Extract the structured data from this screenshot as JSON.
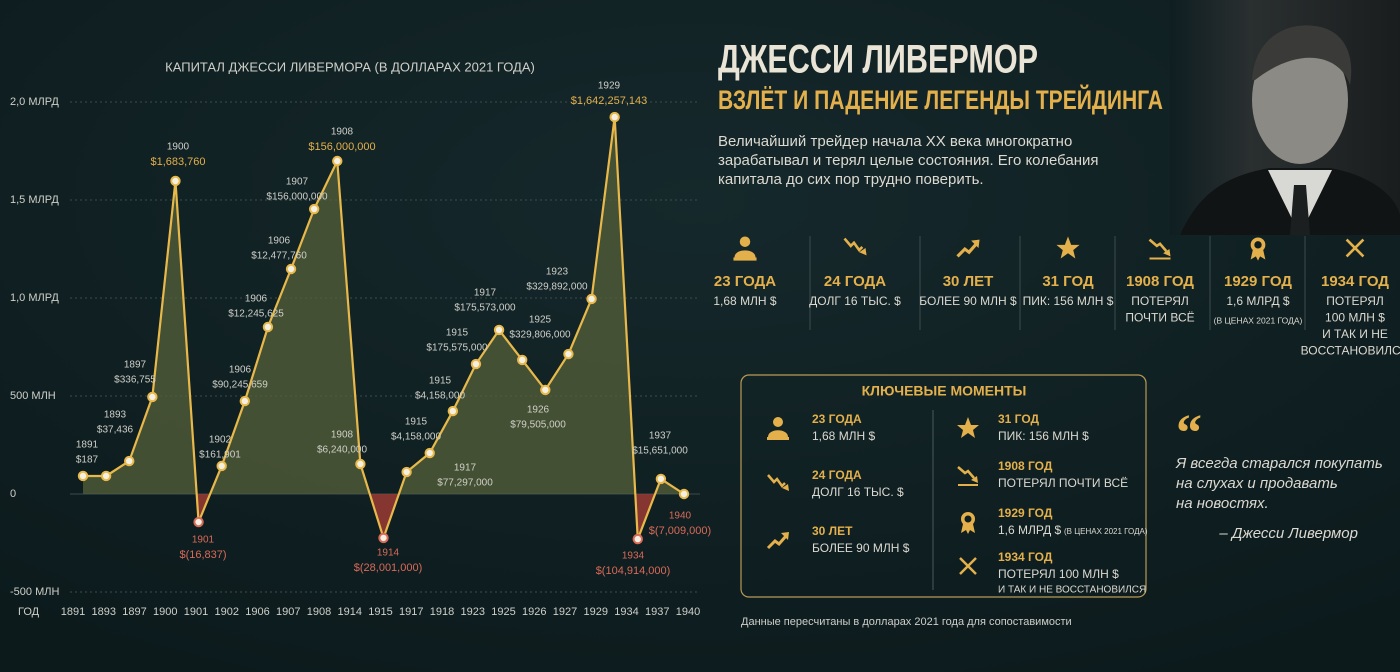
{
  "chart_data": {
    "type": "line",
    "title": "КАПИТАЛ ДЖЕССИ ЛИВЕРМОРА (В ДОЛЛАРАХ 2021 ГОДА)",
    "x_axis_title": "ГОД",
    "xtick_labels": [
      "1891",
      "1893",
      "1897",
      "1900",
      "1901",
      "1902",
      "1906",
      "1907",
      "1908",
      "1914",
      "1915",
      "1917",
      "1918",
      "1923",
      "1925",
      "1926",
      "1927",
      "1929",
      "1934",
      "1937",
      "1940"
    ],
    "values": [
      92,
      92,
      168,
      495,
      1597,
      -143,
      143,
      474,
      852,
      1148,
      1454,
      1699,
      153,
      -224,
      112,
      209,
      423,
      663,
      837,
      684,
      531,
      714,
      995,
      1923,
      -230,
      77,
      0
    ],
    "color": "#e8b94a",
    "positive_fill": "#56603a",
    "negative_fill": "#9a3b32",
    "ylim": [
      -500,
      2000
    ],
    "yticks": [
      {
        "value": -500,
        "label": "-500 МЛН"
      },
      0,
      {
        "value": 500,
        "label": "500 МЛН"
      },
      {
        "value": 1000,
        "label": "1,0 МЛРД"
      },
      {
        "value": 1500,
        "label": "1,5 МЛРД"
      },
      {
        "value": 2000,
        "label": "2,0 МЛРД"
      }
    ],
    "grid": true,
    "annotations": [
      {
        "year": "1891",
        "amount": "$187"
      },
      {
        "year": "1893",
        "amount": "$37,436"
      },
      {
        "year": "1897",
        "amount": "$336,755"
      },
      {
        "year": "1900",
        "amount": "$1,683,760"
      },
      {
        "year": "1901",
        "amount": "$(16,837)"
      },
      {
        "year": "1902",
        "amount": "$161,901"
      },
      {
        "year": "1906",
        "amount": "$90,245,659"
      },
      {
        "year": "1906",
        "amount": "$12,245,625"
      },
      {
        "year": "1906",
        "amount": "$12,477,760"
      },
      {
        "year": "1907",
        "amount": "$156,000,000"
      },
      {
        "year": "1908",
        "amount": "$156,000,000"
      },
      {
        "year": "1908",
        "amount": "$6,240,000"
      },
      {
        "year": "1914",
        "amount": "$(28,001,000)"
      },
      {
        "year": "1915",
        "amount": "$4,158,000"
      },
      {
        "year": "1915",
        "amount": "$4,158,000"
      },
      {
        "year": "1915",
        "amount": "$175,575,000"
      },
      {
        "year": "1917",
        "amount": "$175,573,000"
      },
      {
        "year": "1917",
        "amount": "$77,297,000"
      },
      {
        "year": "1925",
        "amount": "$329,806,000"
      },
      {
        "year": "1926",
        "amount": "$79,505,000"
      },
      {
        "year": "1923",
        "amount": "$329,892,000"
      },
      {
        "year": "1929",
        "amount": "$1,642,257,143"
      },
      {
        "year": "1934",
        "amount": "$(104,914,000)"
      },
      {
        "year": "1937",
        "amount": "$15,651,000"
      },
      {
        "year": "1940",
        "amount": "$(7,009,000)"
      }
    ]
  },
  "header": {
    "title": "ДЖЕССИ ЛИВЕРМОР",
    "subtitle": "ВЗЛЁТ И ПАДЕНИЕ ЛЕГЕНДЫ ТРЕЙДИНГА",
    "description": [
      "Величайший трейдер начала XX века многократно",
      "зарабатывал и терял целые состояния. Его колебания",
      "капитала до сих пор трудно поверить."
    ]
  },
  "stats": [
    {
      "heading": "23 ГОДА",
      "lines": [
        "1,68 МЛН $"
      ]
    },
    {
      "heading": "24 ГОДА",
      "lines": [
        "ДОЛГ 16 ТЫС. $"
      ]
    },
    {
      "heading": "30 ЛЕТ",
      "lines": [
        "БОЛЕЕ 90 МЛН $"
      ]
    },
    {
      "heading": "31 ГОД",
      "lines": [
        "ПИК: 156 МЛН $"
      ]
    },
    {
      "heading": "1908 ГОД",
      "lines": [
        "ПОТЕРЯЛ",
        "ПОЧТИ ВСЁ"
      ]
    },
    {
      "heading": "1929 ГОД",
      "lines": [
        "1,6 МЛРД $",
        "(В ЦЕНАХ 2021 ГОДА)"
      ]
    },
    {
      "heading": "1934 ГОД",
      "lines": [
        "ПОТЕРЯЛ",
        "100 МЛН $",
        "И ТАК И НЕ",
        "ВОССТАНОВИЛСЯ"
      ]
    }
  ],
  "key_moments": {
    "title": "КЛЮЧЕВЫЕ МОМЕНТЫ",
    "items": [
      {
        "heading": "23 ГОДА",
        "lines": [
          "1,68 МЛН $"
        ]
      },
      {
        "heading": "24 ГОДА",
        "lines": [
          "ДОЛГ 16 ТЫС. $"
        ]
      },
      {
        "heading": "30 ЛЕТ",
        "lines": [
          "БОЛЕЕ 90 МЛН $"
        ]
      },
      {
        "heading": "31 ГОД",
        "lines": [
          "ПИК: 156 МЛН $"
        ]
      },
      {
        "heading": "1908 ГОД",
        "lines": [
          "ПОТЕРЯЛ ПОЧТИ ВСЁ"
        ]
      },
      {
        "heading": "1929 ГОД",
        "lines": [
          "1,6 МЛРД $"
        ],
        "note": "(В ЦЕНАХ 2021 ГОДА)"
      },
      {
        "heading": "1934 ГОД",
        "lines": [
          "ПОТЕРЯЛ 100 МЛН $",
          "И ТАК И НЕ ВОССТАНОВИЛСЯ"
        ]
      }
    ]
  },
  "quote": {
    "mark": "“",
    "lines": [
      "Я всегда старался покупать",
      "на слухах и продавать",
      "на новостях."
    ],
    "author": "– Джесси Ливермор"
  },
  "footnote": "Данные пересчитаны в долларах 2021 года для сопоставимости"
}
